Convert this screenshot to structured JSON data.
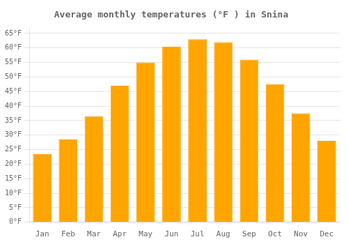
{
  "chart_data": {
    "type": "bar",
    "title": "Average monthly temperatures (°F ) in Snina",
    "categories": [
      "Jan",
      "Feb",
      "Mar",
      "Apr",
      "May",
      "Jun",
      "Jul",
      "Aug",
      "Sep",
      "Oct",
      "Nov",
      "Dec"
    ],
    "values": [
      23.5,
      28.5,
      36.5,
      47.0,
      55.0,
      60.5,
      63.0,
      62.0,
      56.0,
      47.5,
      37.5,
      28.0
    ],
    "color": "#FFA500",
    "ylim": [
      0,
      67
    ],
    "yticks": [
      {
        "value": 0,
        "label": "0°F"
      },
      {
        "value": 5,
        "label": "5°F"
      },
      {
        "value": 10,
        "label": "10°F"
      },
      {
        "value": 15,
        "label": "15°F"
      },
      {
        "value": 20,
        "label": "20°F"
      },
      {
        "value": 25,
        "label": "25°F"
      },
      {
        "value": 30,
        "label": "30°F"
      },
      {
        "value": 35,
        "label": "35°F"
      },
      {
        "value": 40,
        "label": "40°F"
      },
      {
        "value": 45,
        "label": "45°F"
      },
      {
        "value": 50,
        "label": "50°F"
      },
      {
        "value": 55,
        "label": "55°F"
      },
      {
        "value": 60,
        "label": "60°F"
      },
      {
        "value": 65,
        "label": "65°F"
      }
    ],
    "grid": true
  }
}
